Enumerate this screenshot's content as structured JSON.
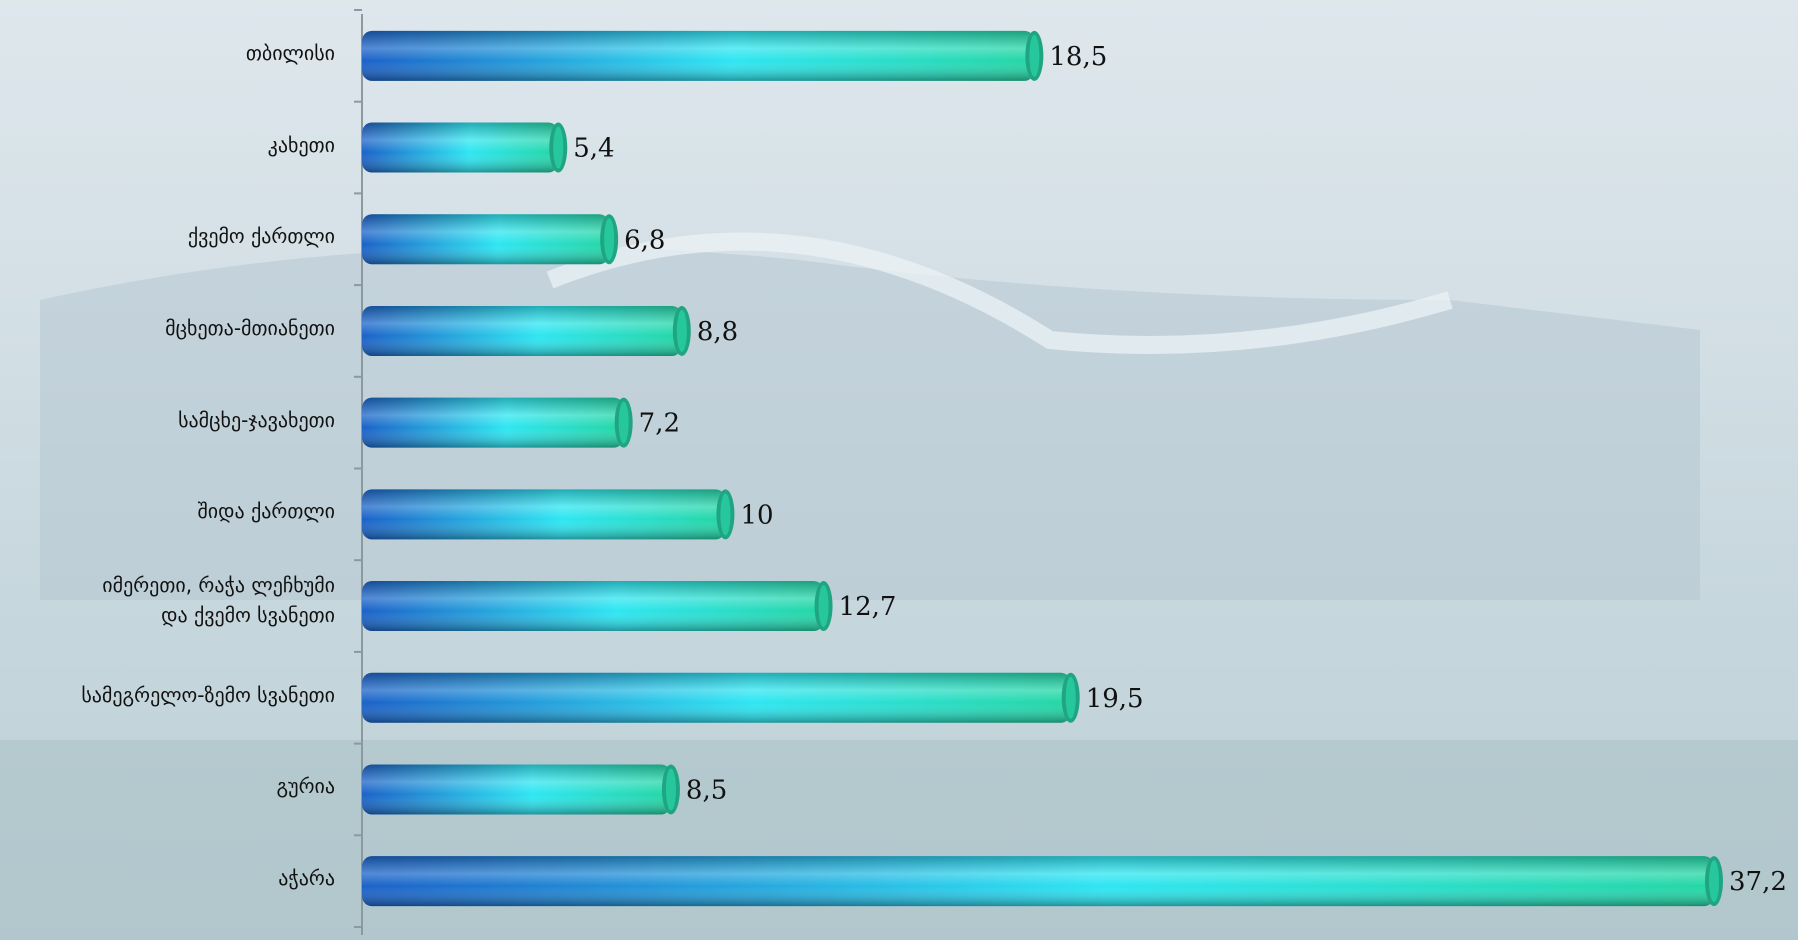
{
  "chart_data": {
    "type": "bar",
    "orientation": "horizontal",
    "categories": [
      "თბილისი",
      "კახეთი",
      "ქვემო ქართლი",
      "მცხეთა-მთიანეთი",
      "სამცხე-ჯავახეთი",
      "შიდა ქართლი",
      "იმერეთი, რაჭა ლეჩხუმი\nდა ქვემო სვანეთი",
      "სამეგრელო-ზემო სვანეთი",
      "გურია",
      "აჭარა"
    ],
    "values": [
      18.5,
      5.4,
      6.8,
      8.8,
      7.2,
      10,
      12.7,
      19.5,
      8.5,
      37.2
    ],
    "value_labels": [
      "18,5",
      "5,4",
      "6,8",
      "8,8",
      "7,2",
      "10",
      "12,7",
      "19,5",
      "8,5",
      "37,2"
    ]
  }
}
